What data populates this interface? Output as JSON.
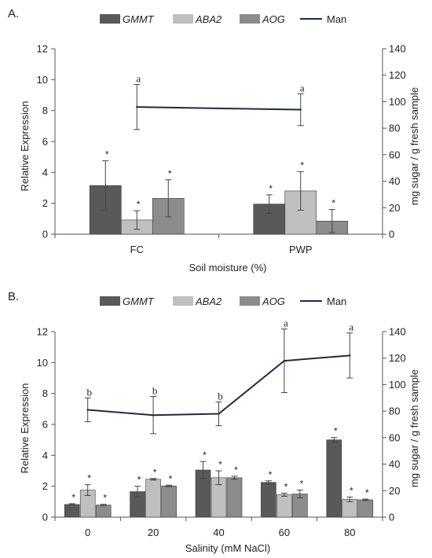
{
  "colors": {
    "GMMT": "#595959",
    "ABA2": "#bfbfbf",
    "AOG": "#8c8c8c",
    "Man": "#1f2a44",
    "axis": "#555555",
    "error": "#444444"
  },
  "chart_data": [
    {
      "panel_label": "A.",
      "type": "bar",
      "categories": [
        "FC",
        "PWP"
      ],
      "xlabel": "Soil moisture (%)",
      "ylabel": "Relative Expression",
      "y2label": "mg sugar / g fresh sample",
      "ylim": [
        0,
        12
      ],
      "yticks": [
        0,
        2,
        4,
        6,
        8,
        10,
        12
      ],
      "y2lim": [
        0,
        140
      ],
      "y2ticks": [
        0,
        20,
        40,
        60,
        80,
        100,
        120,
        140
      ],
      "grid": false,
      "legend_position": "top",
      "series": [
        {
          "name": "GMMT",
          "axis": "left",
          "values": [
            3.15,
            1.95
          ],
          "errors": [
            1.6,
            0.6
          ],
          "labels": [
            "*",
            "*"
          ]
        },
        {
          "name": "ABA2",
          "axis": "left",
          "values": [
            0.92,
            2.8
          ],
          "errors": [
            0.6,
            1.25
          ],
          "labels": [
            "*",
            "*"
          ]
        },
        {
          "name": "AOG",
          "axis": "left",
          "values": [
            2.32,
            0.85
          ],
          "errors": [
            1.2,
            0.75
          ],
          "labels": [
            "*",
            "*"
          ]
        },
        {
          "name": "Man",
          "type": "line",
          "axis": "right",
          "values": [
            96,
            94
          ],
          "errors": [
            17,
            12
          ],
          "labels": [
            "a",
            "a"
          ]
        }
      ]
    },
    {
      "panel_label": "B.",
      "type": "bar",
      "categories": [
        "0",
        "20",
        "40",
        "60",
        "80"
      ],
      "xlabel": "Salinity (mM NaCl)",
      "ylabel": "Relative Expression",
      "y2label": "mg sugar / g fresh sample",
      "ylim": [
        0,
        12
      ],
      "yticks": [
        0,
        2,
        4,
        6,
        8,
        10,
        12
      ],
      "y2lim": [
        0,
        140
      ],
      "y2ticks": [
        0,
        20,
        40,
        60,
        80,
        100,
        120,
        140
      ],
      "grid": false,
      "legend_position": "top",
      "series": [
        {
          "name": "GMMT",
          "axis": "left",
          "values": [
            0.82,
            1.65,
            3.05,
            2.25,
            5.0
          ],
          "errors": [
            0.05,
            0.35,
            0.55,
            0.1,
            0.15
          ],
          "labels": [
            "*",
            "*",
            "*",
            "*",
            "*"
          ]
        },
        {
          "name": "ABA2",
          "axis": "left",
          "values": [
            1.75,
            2.45,
            2.55,
            1.45,
            1.15
          ],
          "errors": [
            0.35,
            0.05,
            0.45,
            0.1,
            0.15
          ],
          "labels": [
            "*",
            "*",
            "*",
            "*",
            "*"
          ]
        },
        {
          "name": "AOG",
          "axis": "left",
          "values": [
            0.78,
            2.02,
            2.55,
            1.5,
            1.12
          ],
          "errors": [
            0.05,
            0.05,
            0.1,
            0.25,
            0.05
          ],
          "labels": [
            "*",
            "*",
            "*",
            "*",
            "*"
          ]
        },
        {
          "name": "Man",
          "type": "line",
          "axis": "right",
          "values": [
            81,
            77,
            78,
            118,
            122
          ],
          "errors": [
            9,
            14,
            9,
            24,
            17
          ],
          "labels": [
            "b",
            "b",
            "b",
            "a",
            "a"
          ]
        }
      ]
    }
  ]
}
